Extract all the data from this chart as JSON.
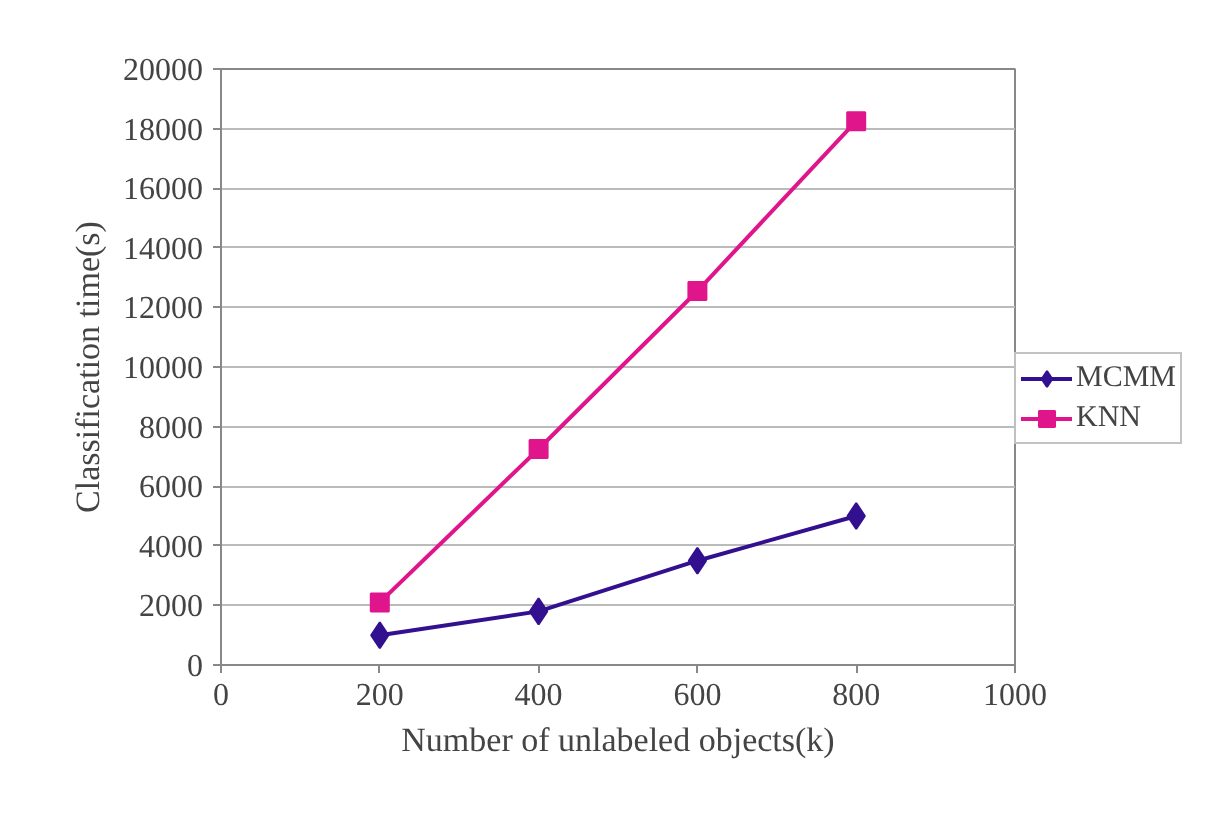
{
  "chart_data": {
    "type": "line",
    "xlabel": "Number of unlabeled objects(k)",
    "ylabel": "Classification time(s)",
    "x": [
      200,
      400,
      600,
      800
    ],
    "series": [
      {
        "name": "MCMM",
        "color": "#33108f",
        "values": [
          1000,
          1800,
          3500,
          5000
        ],
        "marker": "diamond"
      },
      {
        "name": "KNN",
        "color": "#e0158c",
        "values": [
          2100,
          7250,
          12550,
          18250
        ],
        "marker": "square"
      }
    ],
    "xlim": [
      0,
      1000
    ],
    "xticks": [
      0,
      200,
      400,
      600,
      800,
      1000
    ],
    "ylim": [
      0,
      20000
    ],
    "yticks": [
      0,
      2000,
      4000,
      6000,
      8000,
      10000,
      12000,
      14000,
      16000,
      18000,
      20000
    ],
    "grid": "y",
    "legend": "right",
    "line_style": "solid"
  }
}
